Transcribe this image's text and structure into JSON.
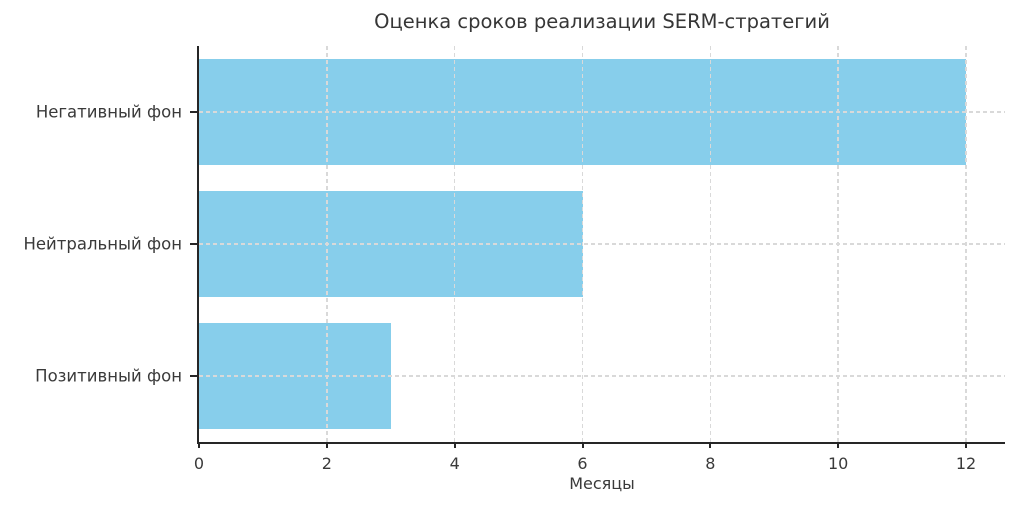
{
  "chart_data": {
    "type": "bar",
    "orientation": "horizontal",
    "title": "Оценка сроков реализации SERM-стратегий",
    "categories": [
      "Негативный фон",
      "Нейтральный фон",
      "Позитивный фон"
    ],
    "values": [
      12,
      6,
      3
    ],
    "xlabel": "Месяцы",
    "ylabel": "",
    "xticks": [
      0,
      2,
      4,
      6,
      8,
      10,
      12
    ],
    "xlim": [
      0,
      12.6
    ],
    "grid": true,
    "grid_style": "dashed",
    "legend": false,
    "colors": {
      "bar": "#87CEEB",
      "grid": "#d9d9d9",
      "axis": "#262626",
      "text": "#3a3a3a",
      "background": "#ffffff"
    }
  }
}
